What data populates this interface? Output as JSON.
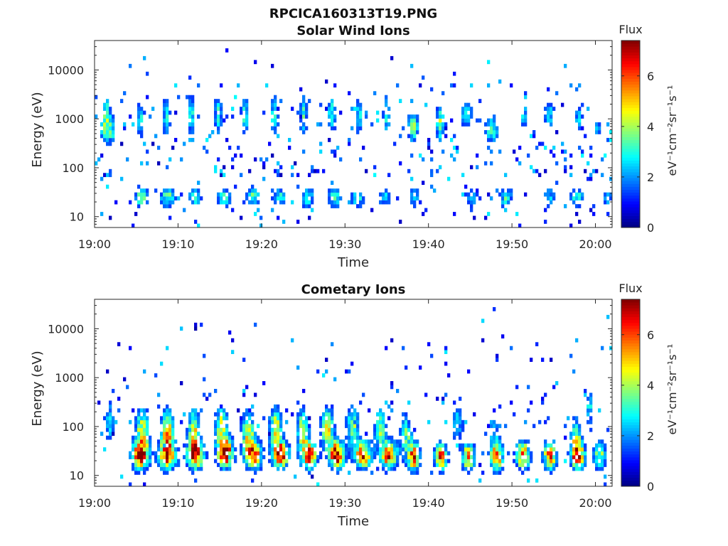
{
  "figure": {
    "title": "RPCICA160313T19.PNG"
  },
  "chart_data": [
    {
      "type": "heatmap",
      "title": "Solar Wind Ions",
      "xlabel": "Time",
      "ylabel": "Energy (eV)",
      "x_ticks": [
        "19:00",
        "19:10",
        "19:20",
        "19:30",
        "19:40",
        "19:50",
        "20:00"
      ],
      "y_ticks": [
        "10",
        "100",
        "1000",
        "10000"
      ],
      "y_scale": "log",
      "ylim": [
        6,
        40000
      ],
      "xlim": [
        "19:00",
        "20:02"
      ],
      "colorbar": {
        "title": "Flux",
        "label": "eV⁻¹cm⁻²sr⁻¹s⁻¹",
        "ticks": [
          "0",
          "2",
          "4",
          "6"
        ],
        "range": [
          0,
          7.4
        ]
      },
      "blobs": [
        {
          "t": 1.4,
          "e": 1500,
          "amp": 2.7,
          "dt": 0.35,
          "de": 0.25
        },
        {
          "t": 1.3,
          "e": 600,
          "amp": 3.2,
          "dt": 0.5,
          "de": 0.2
        },
        {
          "t": 2.1,
          "e": 600,
          "amp": 2.3,
          "dt": 0.3,
          "de": 0.2
        },
        {
          "t": 5.6,
          "e": 25,
          "amp": 3.6,
          "dt": 0.6,
          "de": 0.15
        },
        {
          "t": 8.8,
          "e": 25,
          "amp": 3.4,
          "dt": 0.7,
          "de": 0.15
        },
        {
          "t": 12.0,
          "e": 25,
          "amp": 2.8,
          "dt": 0.6,
          "de": 0.15
        },
        {
          "t": 15.5,
          "e": 25,
          "amp": 3.2,
          "dt": 0.6,
          "de": 0.15
        },
        {
          "t": 19.0,
          "e": 25,
          "amp": 3.4,
          "dt": 0.6,
          "de": 0.15
        },
        {
          "t": 22.2,
          "e": 25,
          "amp": 3.0,
          "dt": 0.6,
          "de": 0.15
        },
        {
          "t": 25.5,
          "e": 25,
          "amp": 3.0,
          "dt": 0.6,
          "de": 0.15
        },
        {
          "t": 28.8,
          "e": 25,
          "amp": 3.2,
          "dt": 0.6,
          "de": 0.15
        },
        {
          "t": 31.5,
          "e": 25,
          "amp": 3.2,
          "dt": 0.6,
          "de": 0.15
        },
        {
          "t": 34.8,
          "e": 25,
          "amp": 2.6,
          "dt": 0.6,
          "de": 0.15
        },
        {
          "t": 38.4,
          "e": 25,
          "amp": 2.6,
          "dt": 0.5,
          "de": 0.15
        },
        {
          "t": 45.2,
          "e": 25,
          "amp": 2.4,
          "dt": 0.6,
          "de": 0.15
        },
        {
          "t": 49.3,
          "e": 25,
          "amp": 3.0,
          "dt": 0.6,
          "de": 0.15
        },
        {
          "t": 54.5,
          "e": 25,
          "amp": 2.4,
          "dt": 0.6,
          "de": 0.15
        },
        {
          "t": 57.8,
          "e": 25,
          "amp": 3.0,
          "dt": 0.6,
          "de": 0.15
        },
        {
          "t": 61.4,
          "e": 25,
          "amp": 2.3,
          "dt": 0.5,
          "de": 0.15
        },
        {
          "t": 5.5,
          "e": 1000,
          "amp": 2.8,
          "dt": 0.35,
          "de": 0.3
        },
        {
          "t": 8.6,
          "e": 1200,
          "amp": 3.0,
          "dt": 0.35,
          "de": 0.3
        },
        {
          "t": 11.6,
          "e": 1200,
          "amp": 3.0,
          "dt": 0.35,
          "de": 0.3
        },
        {
          "t": 14.8,
          "e": 1200,
          "amp": 3.1,
          "dt": 0.35,
          "de": 0.3
        },
        {
          "t": 18.0,
          "e": 1200,
          "amp": 3.0,
          "dt": 0.35,
          "de": 0.3
        },
        {
          "t": 21.5,
          "e": 1200,
          "amp": 3.0,
          "dt": 0.35,
          "de": 0.3
        },
        {
          "t": 25.0,
          "e": 1200,
          "amp": 3.0,
          "dt": 0.35,
          "de": 0.3
        },
        {
          "t": 28.4,
          "e": 1200,
          "amp": 3.0,
          "dt": 0.35,
          "de": 0.3
        },
        {
          "t": 31.7,
          "e": 1200,
          "amp": 2.8,
          "dt": 0.35,
          "de": 0.3
        },
        {
          "t": 35.0,
          "e": 1200,
          "amp": 2.8,
          "dt": 0.35,
          "de": 0.3
        },
        {
          "t": 38.2,
          "e": 700,
          "amp": 3.4,
          "dt": 0.5,
          "de": 0.25
        },
        {
          "t": 41.4,
          "e": 800,
          "amp": 3.8,
          "dt": 0.35,
          "de": 0.25
        },
        {
          "t": 44.6,
          "e": 1200,
          "amp": 2.6,
          "dt": 0.6,
          "de": 0.2
        },
        {
          "t": 47.6,
          "e": 600,
          "amp": 3.1,
          "dt": 0.6,
          "de": 0.2
        },
        {
          "t": 51.4,
          "e": 1200,
          "amp": 2.6,
          "dt": 0.4,
          "de": 0.2
        },
        {
          "t": 54.5,
          "e": 1200,
          "amp": 2.5,
          "dt": 0.5,
          "de": 0.2
        },
        {
          "t": 58.0,
          "e": 1100,
          "amp": 2.4,
          "dt": 0.4,
          "de": 0.2
        },
        {
          "t": 60.3,
          "e": 600,
          "amp": 2.2,
          "dt": 0.4,
          "de": 0.2
        }
      ],
      "speckle": {
        "density": 0.075,
        "mid_density": 0.04,
        "upper": 5200,
        "lower": 5
      }
    },
    {
      "type": "heatmap",
      "title": "Cometary Ions",
      "xlabel": "Time",
      "ylabel": "Energy (eV)",
      "x_ticks": [
        "19:00",
        "19:10",
        "19:20",
        "19:30",
        "19:40",
        "19:50",
        "20:00"
      ],
      "y_ticks": [
        "10",
        "100",
        "1000",
        "10000"
      ],
      "y_scale": "log",
      "ylim": [
        6,
        40000
      ],
      "xlim": [
        "19:00",
        "20:02"
      ],
      "colorbar": {
        "title": "Flux",
        "label": "eV⁻¹cm⁻²sr⁻¹s⁻¹",
        "ticks": [
          "0",
          "2",
          "4",
          "6"
        ],
        "range": [
          0,
          7.4
        ]
      },
      "blobs": [
        {
          "t": 5.5,
          "e": 26,
          "amp": 6.6,
          "dt": 0.75,
          "de": 0.2
        },
        {
          "t": 8.7,
          "e": 26,
          "amp": 6.6,
          "dt": 0.75,
          "de": 0.2
        },
        {
          "t": 12.1,
          "e": 26,
          "amp": 6.2,
          "dt": 0.75,
          "de": 0.2
        },
        {
          "t": 15.7,
          "e": 28,
          "amp": 6.8,
          "dt": 0.7,
          "de": 0.2
        },
        {
          "t": 19.0,
          "e": 26,
          "amp": 6.6,
          "dt": 0.7,
          "de": 0.2
        },
        {
          "t": 22.3,
          "e": 26,
          "amp": 6.4,
          "dt": 0.7,
          "de": 0.2
        },
        {
          "t": 25.7,
          "e": 26,
          "amp": 6.2,
          "dt": 0.7,
          "de": 0.2
        },
        {
          "t": 29.0,
          "e": 26,
          "amp": 6.8,
          "dt": 0.7,
          "de": 0.2
        },
        {
          "t": 32.2,
          "e": 26,
          "amp": 6.3,
          "dt": 0.7,
          "de": 0.2
        },
        {
          "t": 35.3,
          "e": 26,
          "amp": 6.2,
          "dt": 0.7,
          "de": 0.2
        },
        {
          "t": 38.3,
          "e": 24,
          "amp": 6.0,
          "dt": 0.55,
          "de": 0.2
        },
        {
          "t": 41.5,
          "e": 24,
          "amp": 5.7,
          "dt": 0.55,
          "de": 0.2
        },
        {
          "t": 44.8,
          "e": 24,
          "amp": 5.6,
          "dt": 0.55,
          "de": 0.2
        },
        {
          "t": 48.2,
          "e": 24,
          "amp": 5.5,
          "dt": 0.55,
          "de": 0.2
        },
        {
          "t": 51.3,
          "e": 26,
          "amp": 6.0,
          "dt": 0.6,
          "de": 0.2
        },
        {
          "t": 54.6,
          "e": 26,
          "amp": 5.8,
          "dt": 0.6,
          "de": 0.2
        },
        {
          "t": 57.9,
          "e": 26,
          "amp": 6.0,
          "dt": 0.6,
          "de": 0.2
        },
        {
          "t": 60.5,
          "e": 26,
          "amp": 3.8,
          "dt": 0.6,
          "de": 0.2
        },
        {
          "t": 5.7,
          "e": 90,
          "amp": 4.4,
          "dt": 0.55,
          "de": 0.3
        },
        {
          "t": 8.7,
          "e": 90,
          "amp": 4.8,
          "dt": 0.55,
          "de": 0.3
        },
        {
          "t": 11.9,
          "e": 90,
          "amp": 4.2,
          "dt": 0.55,
          "de": 0.3
        },
        {
          "t": 15.2,
          "e": 95,
          "amp": 4.4,
          "dt": 0.55,
          "de": 0.3
        },
        {
          "t": 18.4,
          "e": 80,
          "amp": 4.2,
          "dt": 0.55,
          "de": 0.3
        },
        {
          "t": 21.7,
          "e": 100,
          "amp": 4.4,
          "dt": 0.55,
          "de": 0.3
        },
        {
          "t": 24.9,
          "e": 90,
          "amp": 4.0,
          "dt": 0.55,
          "de": 0.3
        },
        {
          "t": 27.9,
          "e": 95,
          "amp": 4.4,
          "dt": 0.55,
          "de": 0.3
        },
        {
          "t": 30.9,
          "e": 100,
          "amp": 3.8,
          "dt": 0.55,
          "de": 0.3
        },
        {
          "t": 34.2,
          "e": 95,
          "amp": 3.5,
          "dt": 0.55,
          "de": 0.3
        },
        {
          "t": 37.3,
          "e": 70,
          "amp": 3.4,
          "dt": 0.5,
          "de": 0.3
        },
        {
          "t": 43.5,
          "e": 120,
          "amp": 2.6,
          "dt": 0.5,
          "de": 0.3
        },
        {
          "t": 47.8,
          "e": 80,
          "amp": 2.4,
          "dt": 0.5,
          "de": 0.3
        },
        {
          "t": 57.7,
          "e": 60,
          "amp": 3.4,
          "dt": 0.5,
          "de": 0.3
        },
        {
          "t": 59.3,
          "e": 250,
          "amp": 3.0,
          "dt": 0.3,
          "de": 0.25
        },
        {
          "t": 1.8,
          "e": 130,
          "amp": 2.7,
          "dt": 0.45,
          "de": 0.3
        }
      ],
      "speckle": {
        "density": 0.05,
        "mid_density": 0.025,
        "upper": 5200,
        "lower": 5
      }
    }
  ]
}
